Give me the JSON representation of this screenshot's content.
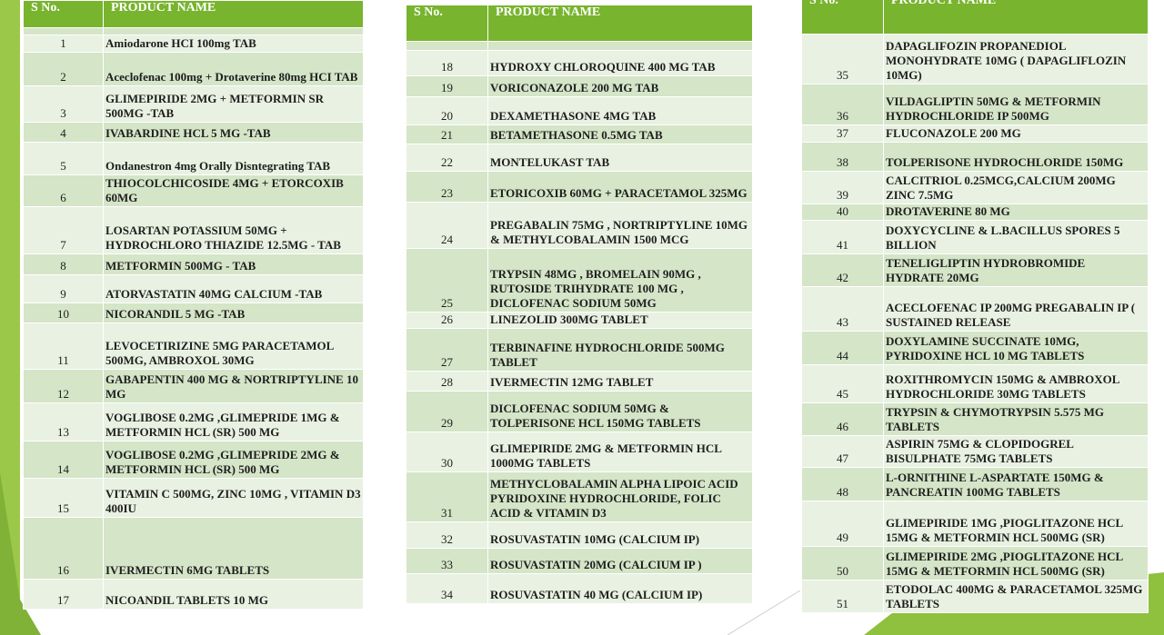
{
  "tables": [
    {
      "header": [
        "S No.",
        "PRODUCT NAME"
      ],
      "rows": [
        [
          "1",
          "Amiodarone HCI 100mg TAB"
        ],
        [
          "2",
          "Aceclofenac 100mg + Drotaverine 80mg HCI TAB"
        ],
        [
          "3",
          "GLIMEPIRIDE 2MG + METFORMIN SR 500MG -TAB"
        ],
        [
          "4",
          "IVABARDINE HCL 5 MG -TAB"
        ],
        [
          "5",
          "Ondanestron 4mg Orally Disntegrating TAB"
        ],
        [
          "6",
          "THIOCOLCHICOSIDE 4MG + ETORCOXIB 60MG"
        ],
        [
          "7",
          "LOSARTAN POTASSIUM 50MG + HYDROCHLORO THIAZIDE 12.5MG - TAB"
        ],
        [
          "8",
          "METFORMIN 500MG - TAB"
        ],
        [
          "9",
          "ATORVASTATIN 40MG CALCIUM -TAB"
        ],
        [
          "10",
          "NICORANDIL 5 MG -TAB"
        ],
        [
          "11",
          "LEVOCETIRIZINE 5MG PARACETAMOL 500MG, AMBROXOL 30MG"
        ],
        [
          "12",
          "GABAPENTIN 400 MG & NORTRIPTYLINE 10 MG"
        ],
        [
          "13",
          "VOGLIBOSE 0.2MG ,GLIMEPRIDE 1MG & METFORMIN HCL (SR) 500 MG"
        ],
        [
          "14",
          "VOGLIBOSE 0.2MG ,GLIMEPRIDE 2MG & METFORMIN HCL (SR) 500 MG"
        ],
        [
          "15",
          "VITAMIN C 500MG, ZINC 10MG , VITAMIN D3 400IU"
        ],
        [
          "16",
          "IVERMECTIN 6MG TABLETS"
        ],
        [
          "17",
          "NICOANDIL TABLETS 10 MG"
        ]
      ]
    },
    {
      "header": [
        "S No.",
        "PRODUCT NAME"
      ],
      "rows": [
        [
          "18",
          "HYDROXY CHLOROQUINE 400 MG TAB"
        ],
        [
          "19",
          "VORICONAZOLE 200 MG TAB"
        ],
        [
          "20",
          "DEXAMETHASONE 4MG TAB"
        ],
        [
          "21",
          "BETAMETHASONE 0.5MG TAB"
        ],
        [
          "22",
          "MONTELUKAST TAB"
        ],
        [
          "23",
          "ETORICOXIB 60MG + PARACETAMOL 325MG"
        ],
        [
          "24",
          "PREGABALIN 75MG , NORTRIPTYLINE 10MG & METHYLCOBALAMIN 1500 MCG"
        ],
        [
          "25",
          "TRYPSIN 48MG , BROMELAIN 90MG , RUTOSIDE TRIHYDRATE 100 MG , DICLOFENAC SODIUM 50MG"
        ],
        [
          "26",
          "LINEZOLID 300MG TABLET"
        ],
        [
          "27",
          "TERBINAFINE HYDROCHLORIDE 500MG TABLET"
        ],
        [
          "28",
          "IVERMECTIN 12MG TABLET"
        ],
        [
          "29",
          "DICLOFENAC SODIUM 50MG & TOLPERISONE HCL 150MG TABLETS"
        ],
        [
          "30",
          "GLIMEPIRIDE 2MG & METFORMIN HCL 1000MG TABLETS"
        ],
        [
          "31",
          "METHYCLOBALAMIN ALPHA LIPOIC ACID PYRIDOXINE HYDROCHLORIDE, FOLIC ACID & VITAMIN D3"
        ],
        [
          "32",
          "ROSUVASTATIN 10MG (CALCIUM IP)"
        ],
        [
          "33",
          "ROSUVASTATIN 20MG (CALCIUM IP )"
        ],
        [
          "34",
          "ROSUVASTATIN 40 MG (CALCIUM IP)"
        ]
      ]
    },
    {
      "header": [
        "S No.",
        "PRODUCT NAME"
      ],
      "rows": [
        [
          "35",
          "DAPAGLIFOZIN PROPANEDIOL MONOHYDRATE 10MG ( DAPAGLIFLOZIN 10MG)"
        ],
        [
          "36",
          "VILDAGLIPTIN 50MG & METFORMIN HYDROCHLORIDE IP 500MG"
        ],
        [
          "37",
          "FLUCONAZOLE 200 MG"
        ],
        [
          "38",
          "TOLPERISONE HYDROCHLORIDE 150MG"
        ],
        [
          "39",
          "CALCITRIOL 0.25MCG,CALCIUM 200MG ZINC 7.5MG"
        ],
        [
          "40",
          "DROTAVERINE 80 MG"
        ],
        [
          "41",
          "DOXYCYCLINE & L.BACILLUS SPORES 5 BILLION"
        ],
        [
          "42",
          "TENELIGLIPTIN HYDROBROMIDE HYDRATE 20MG"
        ],
        [
          "43",
          "ACECLOFENAC IP 200MG PREGABALIN IP ( SUSTAINED RELEASE"
        ],
        [
          "44",
          "DOXYLAMINE SUCCINATE 10MG, PYRIDOXINE HCL 10 MG TABLETS"
        ],
        [
          "45",
          "ROXITHROMYCIN 150MG & AMBROXOL HYDROCHLORIDE 30MG TABLETS"
        ],
        [
          "46",
          "TRYPSIN & CHYMOTRYPSIN 5.575 MG TABLETS"
        ],
        [
          "47",
          "ASPIRIN 75MG & CLOPIDOGREL BISULPHATE 75MG TABLETS"
        ],
        [
          "48",
          "L-ORNITHINE L-ASPARTATE 150MG & PANCREATIN 100MG TABLETS"
        ],
        [
          "49",
          "GLIMEPIRIDE 1MG ,PIOGLITAZONE HCL 15MG & METFORMIN HCL 500MG (SR)"
        ],
        [
          "50",
          "GLIMEPIRIDE 2MG ,PIOGLITAZONE HCL 15MG & METFORMIN HCL 500MG (SR)"
        ],
        [
          "51",
          "ETODOLAC 400MG & PARACETAMOL 325MG TABLETS"
        ]
      ]
    }
  ]
}
